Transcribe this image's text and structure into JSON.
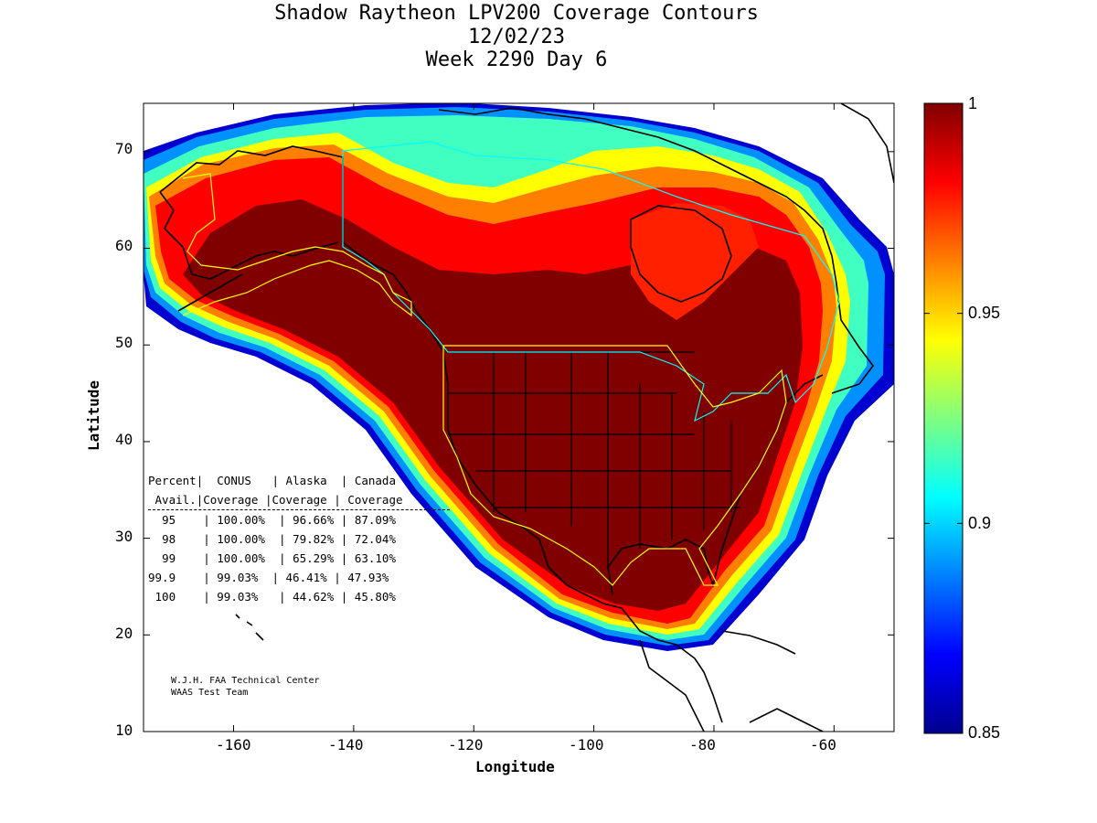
{
  "title_lines": [
    "Shadow Raytheon LPV200 Coverage Contours",
    "12/02/23",
    "Week 2290 Day 6"
  ],
  "axes": {
    "xlabel": "Longitude",
    "ylabel": "Latitude",
    "xlim": [
      -175,
      -50
    ],
    "ylim": [
      10,
      75
    ],
    "xticks": [
      "-160",
      "-140",
      "-120",
      "-100",
      "-80",
      "-60"
    ],
    "yticks": [
      "10",
      "20",
      "30",
      "40",
      "50",
      "60",
      "70"
    ]
  },
  "colorbar": {
    "range": [
      0.85,
      1.0
    ],
    "colormap": "jet",
    "ticks": [
      "1",
      "0.95",
      "0.9",
      "0.85"
    ]
  },
  "table": {
    "header1": [
      "Percent",
      "CONUS",
      "Alaska",
      "Canada"
    ],
    "header2": [
      "Avail.",
      "Coverage",
      "Coverage",
      "Coverage"
    ],
    "rows": [
      [
        "95",
        "100.00%",
        "96.66%",
        "87.09%"
      ],
      [
        "98",
        "100.00%",
        "79.82%",
        "72.04%"
      ],
      [
        "99",
        "100.00%",
        "65.29%",
        "63.10%"
      ],
      [
        "99.9",
        "99.03%",
        "46.41%",
        "47.93%"
      ],
      [
        "100",
        "99.03%",
        "44.62%",
        "45.80%"
      ]
    ]
  },
  "credit": [
    "W.J.H. FAA Technical Center",
    "WAAS Test Team"
  ],
  "colors": {
    "max": "#800000",
    "conus_outline": "#ffff00",
    "canada_outline": "#00ffff"
  }
}
